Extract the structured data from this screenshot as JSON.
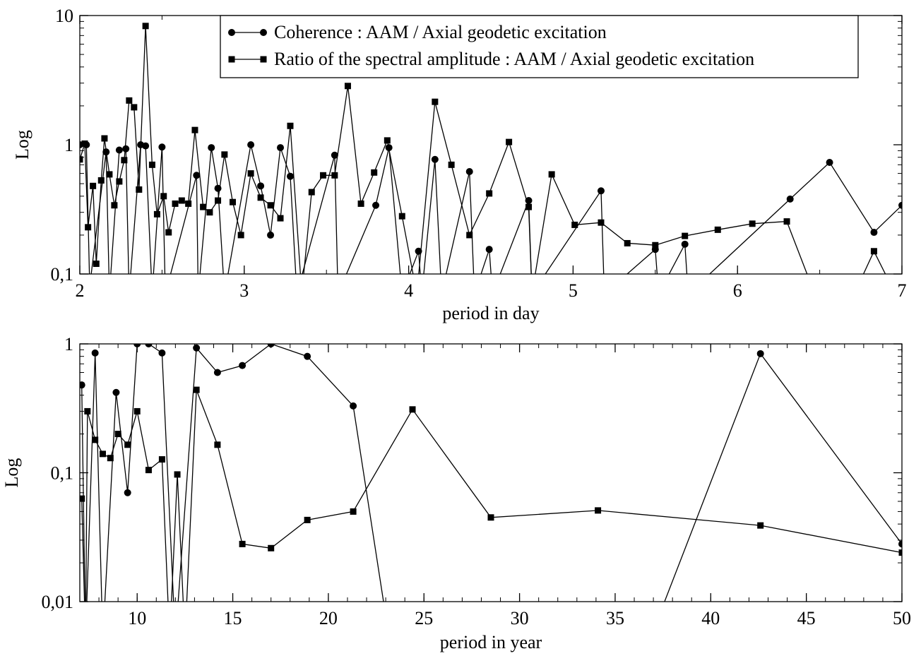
{
  "chart_data": [
    {
      "type": "line",
      "xlabel": "period in day",
      "ylabel": "Log",
      "xlim": [
        2,
        7
      ],
      "ylim": [
        0.1,
        10
      ],
      "yscale": "log",
      "x_ticks": [
        2,
        3,
        4,
        5,
        6,
        7
      ],
      "x_tick_labels": [
        "2",
        "3",
        "4",
        "5",
        "6",
        "7"
      ],
      "y_ticks": [
        0.1,
        1,
        10
      ],
      "y_tick_labels": [
        "0,1",
        "1",
        "10"
      ],
      "legend": {
        "position": "top-center",
        "entries": [
          {
            "label": "Coherence : AAM / Axial geodetic excitation",
            "marker": "circle"
          },
          {
            "label": "Ratio of the spectral amplitude : AAM / Axial geodetic excitation",
            "marker": "square"
          }
        ]
      },
      "series": [
        {
          "name": "Coherence : AAM / Axial geodetic excitation",
          "marker": "circle",
          "points": [
            [
              2.0,
              1.0
            ],
            [
              2.04,
              1.0
            ],
            [
              2.06,
              0.08
            ],
            [
              2.16,
              0.88
            ],
            [
              2.18,
              0.07
            ],
            [
              2.24,
              0.91
            ],
            [
              2.28,
              0.93
            ],
            [
              2.3,
              0.07
            ],
            [
              2.37,
              1.0
            ],
            [
              2.4,
              0.98
            ],
            [
              2.44,
              0.07
            ],
            [
              2.5,
              0.96
            ],
            [
              2.52,
              0.07
            ],
            [
              2.71,
              0.58
            ],
            [
              2.72,
              0.07
            ],
            [
              2.8,
              0.95
            ],
            [
              2.84,
              0.46
            ],
            [
              2.88,
              0.07
            ],
            [
              3.04,
              1.0
            ],
            [
              3.1,
              0.48
            ],
            [
              3.16,
              0.2
            ],
            [
              3.22,
              0.95
            ],
            [
              3.28,
              0.57
            ],
            [
              3.32,
              0.07
            ],
            [
              3.55,
              0.83
            ],
            [
              3.57,
              0.07
            ],
            [
              3.8,
              0.34
            ],
            [
              3.88,
              0.95
            ],
            [
              3.96,
              0.07
            ],
            [
              4.06,
              0.15
            ],
            [
              4.08,
              0.07
            ],
            [
              4.16,
              0.77
            ],
            [
              4.2,
              0.07
            ],
            [
              4.37,
              0.62
            ],
            [
              4.4,
              0.07
            ],
            [
              4.49,
              0.155
            ],
            [
              4.51,
              0.07
            ],
            [
              4.73,
              0.37
            ],
            [
              4.75,
              0.07
            ],
            [
              5.17,
              0.44
            ],
            [
              5.19,
              0.07
            ],
            [
              5.5,
              0.155
            ],
            [
              5.52,
              0.07
            ],
            [
              5.68,
              0.17
            ],
            [
              5.7,
              0.07
            ],
            [
              6.32,
              0.38
            ],
            [
              6.56,
              0.73
            ],
            [
              6.83,
              0.21
            ],
            [
              7.0,
              0.34
            ]
          ]
        },
        {
          "name": "Ratio of the spectral amplitude : AAM / Axial geodetic excitation",
          "marker": "square",
          "points": [
            [
              2.0,
              0.77
            ],
            [
              2.03,
              1.02
            ],
            [
              2.05,
              0.23
            ],
            [
              2.08,
              0.48
            ],
            [
              2.1,
              0.12
            ],
            [
              2.13,
              0.53
            ],
            [
              2.15,
              1.12
            ],
            [
              2.18,
              0.59
            ],
            [
              2.21,
              0.34
            ],
            [
              2.24,
              0.52
            ],
            [
              2.27,
              0.76
            ],
            [
              2.3,
              2.2
            ],
            [
              2.33,
              1.95
            ],
            [
              2.36,
              0.45
            ],
            [
              2.4,
              8.3
            ],
            [
              2.44,
              0.7
            ],
            [
              2.47,
              0.29
            ],
            [
              2.51,
              0.4
            ],
            [
              2.54,
              0.21
            ],
            [
              2.58,
              0.35
            ],
            [
              2.62,
              0.37
            ],
            [
              2.66,
              0.35
            ],
            [
              2.7,
              1.3
            ],
            [
              2.75,
              0.33
            ],
            [
              2.79,
              0.3
            ],
            [
              2.84,
              0.37
            ],
            [
              2.88,
              0.84
            ],
            [
              2.93,
              0.36
            ],
            [
              2.98,
              0.2
            ],
            [
              3.04,
              0.6
            ],
            [
              3.1,
              0.39
            ],
            [
              3.16,
              0.34
            ],
            [
              3.22,
              0.27
            ],
            [
              3.28,
              1.4
            ],
            [
              3.35,
              0.07
            ],
            [
              3.41,
              0.43
            ],
            [
              3.48,
              0.58
            ],
            [
              3.55,
              0.58
            ],
            [
              3.63,
              2.85
            ],
            [
              3.71,
              0.35
            ],
            [
              3.79,
              0.61
            ],
            [
              3.87,
              1.08
            ],
            [
              3.96,
              0.28
            ],
            [
              4.05,
              0.07
            ],
            [
              4.16,
              2.15
            ],
            [
              4.26,
              0.7
            ],
            [
              4.37,
              0.2
            ],
            [
              4.49,
              0.42
            ],
            [
              4.61,
              1.05
            ],
            [
              4.73,
              0.33
            ],
            [
              4.75,
              0.07
            ],
            [
              4.87,
              0.59
            ],
            [
              5.01,
              0.24
            ],
            [
              5.17,
              0.25
            ],
            [
              5.33,
              0.173
            ],
            [
              5.5,
              0.167
            ],
            [
              5.68,
              0.197
            ],
            [
              5.88,
              0.22
            ],
            [
              6.09,
              0.245
            ],
            [
              6.3,
              0.255
            ],
            [
              6.47,
              0.07
            ],
            [
              6.71,
              0.07
            ],
            [
              6.83,
              0.15
            ],
            [
              6.96,
              0.07
            ]
          ]
        }
      ]
    },
    {
      "type": "line",
      "xlabel": "period in year",
      "ylabel": "Log",
      "xlim": [
        7,
        50
      ],
      "ylim": [
        0.01,
        1
      ],
      "yscale": "log",
      "x_ticks": [
        10,
        15,
        20,
        25,
        30,
        35,
        40,
        45,
        50
      ],
      "x_tick_labels": [
        "10",
        "15",
        "20",
        "25",
        "30",
        "35",
        "40",
        "45",
        "50"
      ],
      "y_ticks": [
        0.01,
        0.1,
        1
      ],
      "y_tick_labels": [
        "0,01",
        "0,1",
        "1"
      ],
      "series": [
        {
          "name": "Coherence : AAM / Axial geodetic excitation",
          "marker": "circle",
          "points": [
            [
              7.1,
              0.48
            ],
            [
              7.3,
              0.005
            ],
            [
              7.8,
              0.85
            ],
            [
              8.2,
              0.005
            ],
            [
              8.9,
              0.42
            ],
            [
              9.5,
              0.07
            ],
            [
              10.0,
              1.0
            ],
            [
              10.6,
              1.0
            ],
            [
              11.3,
              0.85
            ],
            [
              12.0,
              0.005
            ],
            [
              13.1,
              0.93
            ],
            [
              14.2,
              0.6
            ],
            [
              15.5,
              0.68
            ],
            [
              17.0,
              1.0
            ],
            [
              18.9,
              0.8
            ],
            [
              21.3,
              0.33
            ],
            [
              23.2,
              0.005
            ],
            [
              36.8,
              0.005
            ],
            [
              42.6,
              0.84
            ],
            [
              50.0,
              0.028
            ]
          ]
        },
        {
          "name": "Ratio of the spectral amplitude : AAM / Axial geodetic excitation",
          "marker": "square",
          "points": [
            [
              7.1,
              0.063
            ],
            [
              7.3,
              0.005
            ],
            [
              7.4,
              0.3
            ],
            [
              7.8,
              0.18
            ],
            [
              8.2,
              0.14
            ],
            [
              8.6,
              0.13
            ],
            [
              9.0,
              0.2
            ],
            [
              9.5,
              0.165
            ],
            [
              10.0,
              0.3
            ],
            [
              10.6,
              0.105
            ],
            [
              11.3,
              0.127
            ],
            [
              11.7,
              0.005
            ],
            [
              12.1,
              0.097
            ],
            [
              12.5,
              0.005
            ],
            [
              13.1,
              0.44
            ],
            [
              14.2,
              0.165
            ],
            [
              15.5,
              0.028
            ],
            [
              17.0,
              0.026
            ],
            [
              18.9,
              0.043
            ],
            [
              21.3,
              0.05
            ],
            [
              24.4,
              0.31
            ],
            [
              28.5,
              0.045
            ],
            [
              34.1,
              0.051
            ],
            [
              42.6,
              0.039
            ],
            [
              50.0,
              0.024
            ]
          ]
        }
      ]
    }
  ]
}
